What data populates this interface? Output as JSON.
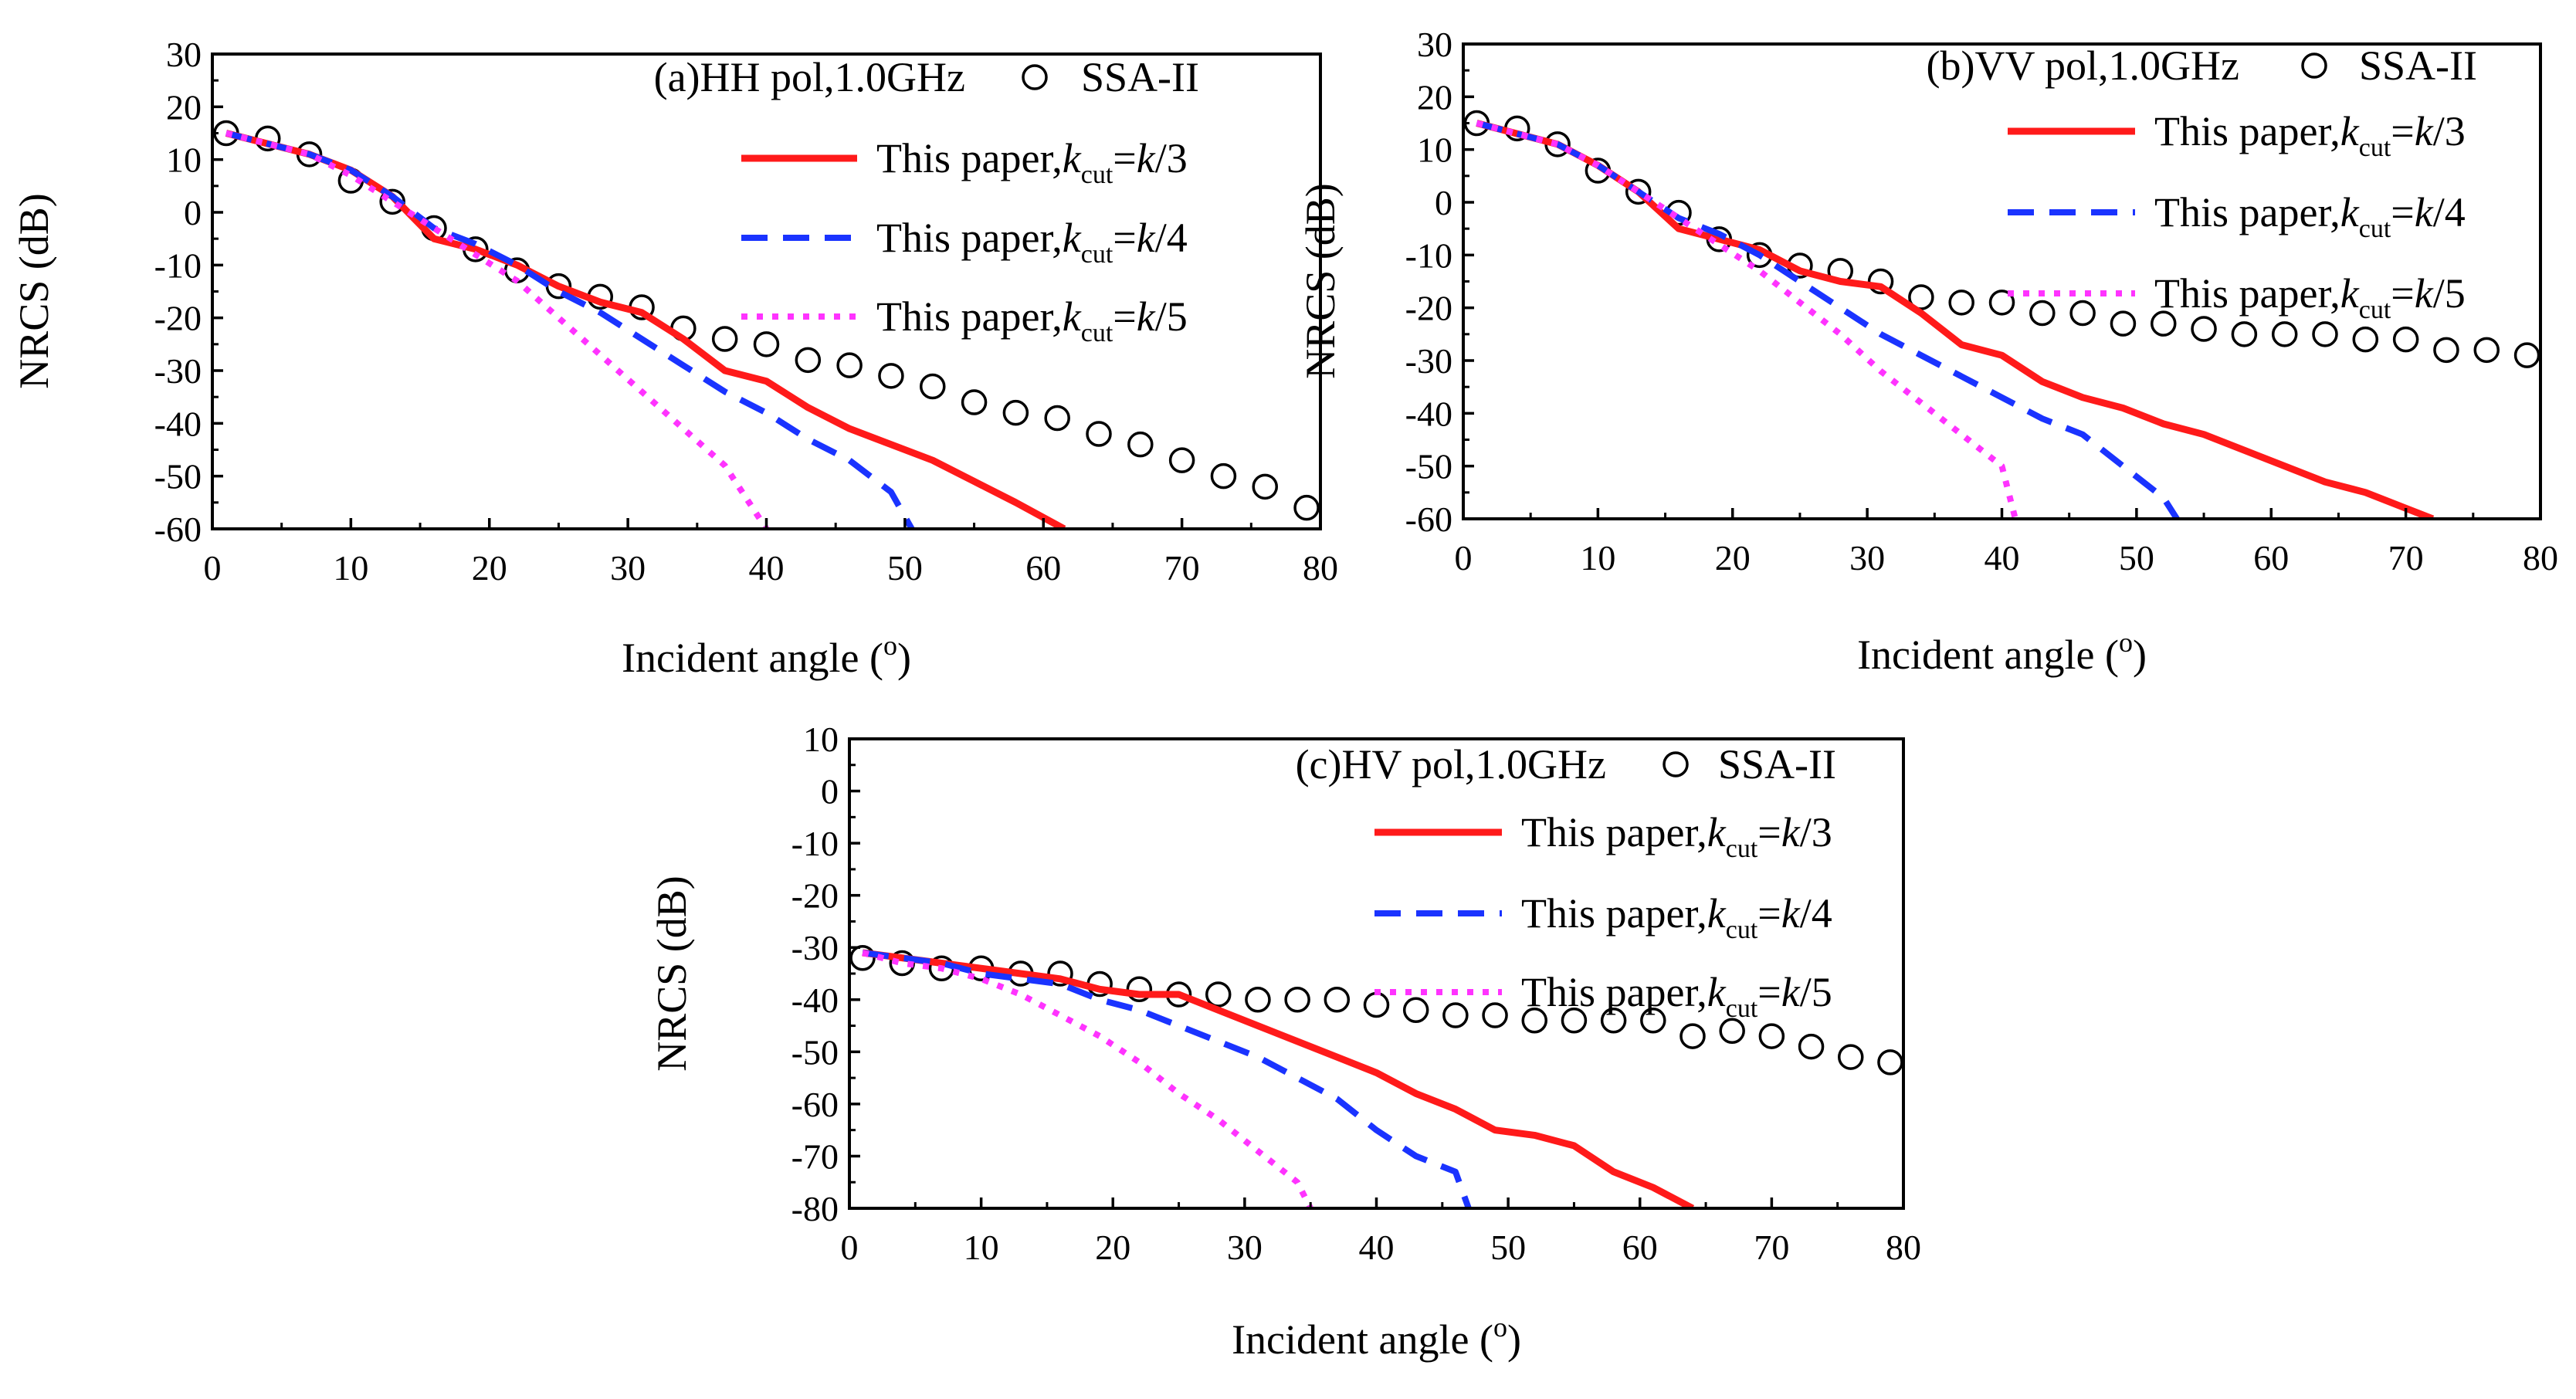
{
  "colors": {
    "red": "#ff1a1a",
    "blue": "#1a33ff",
    "magenta": "#ff33ff",
    "black": "#000000"
  },
  "chart_data": [
    {
      "type": "line",
      "panel_title": "(a)HH pol,1.0GHz",
      "xlabel": "Incident angle (o)",
      "ylabel": "NRCS (dB)",
      "xlim": [
        0,
        80
      ],
      "ylim": [
        -60,
        30
      ],
      "xticks": [
        0,
        10,
        20,
        30,
        40,
        50,
        60,
        70,
        80
      ],
      "yticks": [
        -60,
        -50,
        -40,
        -30,
        -20,
        -10,
        0,
        10,
        20,
        30
      ],
      "legend": [
        {
          "label": "SSA-II",
          "style": "circle"
        },
        {
          "label": "This paper,",
          "kvar": "k",
          "ksub": "cut",
          "eq": "=",
          "kval": "k",
          "frac": "/3",
          "style": "solid"
        },
        {
          "label": "This paper,",
          "kvar": "k",
          "ksub": "cut",
          "eq": "=",
          "kval": "k",
          "frac": "/4",
          "style": "dashed"
        },
        {
          "label": "This paper,",
          "kvar": "k",
          "ksub": "cut",
          "eq": "=",
          "kval": "k",
          "frac": "/5",
          "style": "dotted"
        }
      ],
      "series": [
        {
          "name": "SSA-II",
          "style": "circle",
          "color": "#000000",
          "x": [
            1,
            4,
            7,
            10,
            13,
            16,
            19,
            22,
            25,
            28,
            31,
            34,
            37,
            40,
            43,
            46,
            49,
            52,
            55,
            58,
            61,
            64,
            67,
            70,
            73,
            76,
            79
          ],
          "y": [
            15,
            14,
            11,
            6,
            2,
            -3,
            -7,
            -11,
            -14,
            -16,
            -18,
            -22,
            -24,
            -25,
            -28,
            -29,
            -31,
            -33,
            -36,
            -38,
            -39,
            -42,
            -44,
            -47,
            -50,
            -52,
            -56
          ]
        },
        {
          "name": "k/3",
          "style": "solid",
          "color": "#ff1a1a",
          "x": [
            1,
            4,
            7,
            10,
            13,
            16,
            19,
            22,
            25,
            28,
            31,
            34,
            37,
            40,
            43,
            46,
            49,
            52,
            55,
            58,
            61.5
          ],
          "y": [
            15,
            13,
            11,
            8,
            3,
            -5,
            -7,
            -10,
            -14,
            -17,
            -19,
            -24,
            -30,
            -32,
            -37,
            -41,
            -44,
            -47,
            -51,
            -55,
            -60
          ]
        },
        {
          "name": "k/4",
          "style": "dashed",
          "color": "#1a33ff",
          "x": [
            1,
            4,
            7,
            10,
            13,
            16,
            19,
            22,
            25,
            28,
            31,
            34,
            37,
            40,
            43,
            46,
            49,
            50.5
          ],
          "y": [
            15,
            13,
            11,
            8,
            3,
            -3,
            -6,
            -10,
            -15,
            -19,
            -24,
            -29,
            -34,
            -38,
            -43,
            -47,
            -53,
            -60
          ]
        },
        {
          "name": "k/5",
          "style": "dotted",
          "color": "#ff33ff",
          "x": [
            1,
            4,
            7,
            10,
            13,
            16,
            19,
            22,
            25,
            28,
            31,
            34,
            37,
            40
          ],
          "y": [
            15,
            13,
            11,
            7,
            2,
            -3,
            -8,
            -13,
            -20,
            -27,
            -34,
            -41,
            -48,
            -60
          ]
        }
      ]
    },
    {
      "type": "line",
      "panel_title": "(b)VV pol,1.0GHz",
      "xlabel": "Incident angle (o)",
      "ylabel": "NRCS (dB)",
      "xlim": [
        0,
        80
      ],
      "ylim": [
        -60,
        30
      ],
      "xticks": [
        0,
        10,
        20,
        30,
        40,
        50,
        60,
        70,
        80
      ],
      "yticks": [
        -60,
        -50,
        -40,
        -30,
        -20,
        -10,
        0,
        10,
        20,
        30
      ],
      "legend": [
        {
          "label": "SSA-II",
          "style": "circle"
        },
        {
          "label": "This paper,",
          "kvar": "k",
          "ksub": "cut",
          "eq": "=",
          "kval": "k",
          "frac": "/3",
          "style": "solid"
        },
        {
          "label": "This paper,",
          "kvar": "k",
          "ksub": "cut",
          "eq": "=",
          "kval": "k",
          "frac": "/4",
          "style": "dashed"
        },
        {
          "label": "This paper,",
          "kvar": "k",
          "ksub": "cut",
          "eq": "=",
          "kval": "k",
          "frac": "/5",
          "style": "dotted"
        }
      ],
      "series": [
        {
          "name": "SSA-II",
          "style": "circle",
          "color": "#000000",
          "x": [
            1,
            4,
            7,
            10,
            13,
            16,
            19,
            22,
            25,
            28,
            31,
            34,
            37,
            40,
            43,
            46,
            49,
            52,
            55,
            58,
            61,
            64,
            67,
            70,
            73,
            76,
            79
          ],
          "y": [
            15,
            14,
            11,
            6,
            2,
            -2,
            -7,
            -10,
            -12,
            -13,
            -15,
            -18,
            -19,
            -19,
            -21,
            -21,
            -23,
            -23,
            -24,
            -25,
            -25,
            -25,
            -26,
            -26,
            -28,
            -28,
            -29
          ]
        },
        {
          "name": "k/3",
          "style": "solid",
          "color": "#ff1a1a",
          "x": [
            1,
            4,
            7,
            10,
            13,
            16,
            19,
            22,
            25,
            28,
            31,
            34,
            37,
            40,
            43,
            46,
            49,
            52,
            55,
            58,
            61,
            64,
            67,
            70,
            72
          ],
          "y": [
            15,
            13,
            11,
            7,
            2,
            -5,
            -7,
            -9,
            -13,
            -15,
            -16,
            -21,
            -27,
            -29,
            -34,
            -37,
            -39,
            -42,
            -44,
            -47,
            -50,
            -53,
            -55,
            -58,
            -60
          ]
        },
        {
          "name": "k/4",
          "style": "dashed",
          "color": "#1a33ff",
          "x": [
            1,
            4,
            7,
            10,
            13,
            16,
            19,
            22,
            25,
            28,
            31,
            34,
            37,
            40,
            43,
            46,
            49,
            52,
            53
          ],
          "y": [
            15,
            13,
            11,
            7,
            2,
            -3,
            -6,
            -10,
            -15,
            -20,
            -25,
            -29,
            -33,
            -37,
            -41,
            -44,
            -50,
            -56,
            -60
          ]
        },
        {
          "name": "k/5",
          "style": "dotted",
          "color": "#ff33ff",
          "x": [
            1,
            4,
            7,
            10,
            13,
            16,
            19,
            22,
            25,
            28,
            31,
            34,
            37,
            40,
            41
          ],
          "y": [
            15,
            13,
            11,
            7,
            2,
            -3,
            -8,
            -13,
            -19,
            -25,
            -32,
            -38,
            -44,
            -50,
            -60
          ]
        }
      ]
    },
    {
      "type": "line",
      "panel_title": "(c)HV pol,1.0GHz",
      "xlabel": "Incident angle (o)",
      "ylabel": "NRCS (dB)",
      "xlim": [
        0,
        80
      ],
      "ylim": [
        -80,
        10
      ],
      "xticks": [
        0,
        10,
        20,
        30,
        40,
        50,
        60,
        70,
        80
      ],
      "yticks": [
        -80,
        -70,
        -60,
        -50,
        -40,
        -30,
        -20,
        -10,
        0,
        10
      ],
      "legend": [
        {
          "label": "SSA-II",
          "style": "circle"
        },
        {
          "label": "This paper,",
          "kvar": "k",
          "ksub": "cut",
          "eq": "=",
          "kval": "k",
          "frac": "/3",
          "style": "solid"
        },
        {
          "label": "This paper,",
          "kvar": "k",
          "ksub": "cut",
          "eq": "=",
          "kval": "k",
          "frac": "/4",
          "style": "dashed"
        },
        {
          "label": "This paper,",
          "kvar": "k",
          "ksub": "cut",
          "eq": "=",
          "kval": "k",
          "frac": "/5",
          "style": "dotted"
        }
      ],
      "series": [
        {
          "name": "SSA-II",
          "style": "circle",
          "color": "#000000",
          "x": [
            1,
            4,
            7,
            10,
            13,
            16,
            19,
            22,
            25,
            28,
            31,
            34,
            37,
            40,
            43,
            46,
            49,
            52,
            55,
            58,
            61,
            64,
            67,
            70,
            73,
            76,
            79
          ],
          "y": [
            -32,
            -33,
            -34,
            -34,
            -35,
            -35,
            -37,
            -38,
            -39,
            -39,
            -40,
            -40,
            -40,
            -41,
            -42,
            -43,
            -43,
            -44,
            -44,
            -44,
            -44,
            -47,
            -46,
            -47,
            -49,
            -51,
            -52
          ]
        },
        {
          "name": "k/3",
          "style": "solid",
          "color": "#ff1a1a",
          "x": [
            1,
            4,
            7,
            10,
            13,
            16,
            19,
            22,
            25,
            28,
            31,
            34,
            37,
            40,
            43,
            46,
            49,
            52,
            55,
            58,
            61,
            64
          ],
          "y": [
            -31,
            -32,
            -33,
            -34,
            -35,
            -36,
            -38,
            -39,
            -39,
            -42,
            -45,
            -48,
            -51,
            -54,
            -58,
            -61,
            -65,
            -66,
            -68,
            -73,
            -76,
            -80
          ]
        },
        {
          "name": "k/4",
          "style": "dashed",
          "color": "#1a33ff",
          "x": [
            1,
            4,
            7,
            10,
            13,
            16,
            19,
            22,
            25,
            28,
            31,
            34,
            37,
            40,
            43,
            46,
            47
          ],
          "y": [
            -31,
            -32,
            -33,
            -35,
            -36,
            -37,
            -40,
            -42,
            -45,
            -48,
            -51,
            -55,
            -59,
            -65,
            -70,
            -73,
            -80
          ]
        },
        {
          "name": "k/5",
          "style": "dotted",
          "color": "#ff33ff",
          "x": [
            1,
            4,
            7,
            10,
            13,
            16,
            19,
            22,
            25,
            28,
            31,
            34,
            35
          ],
          "y": [
            -31,
            -33,
            -34,
            -36,
            -39,
            -43,
            -47,
            -52,
            -58,
            -63,
            -69,
            -75,
            -80
          ]
        }
      ]
    }
  ]
}
